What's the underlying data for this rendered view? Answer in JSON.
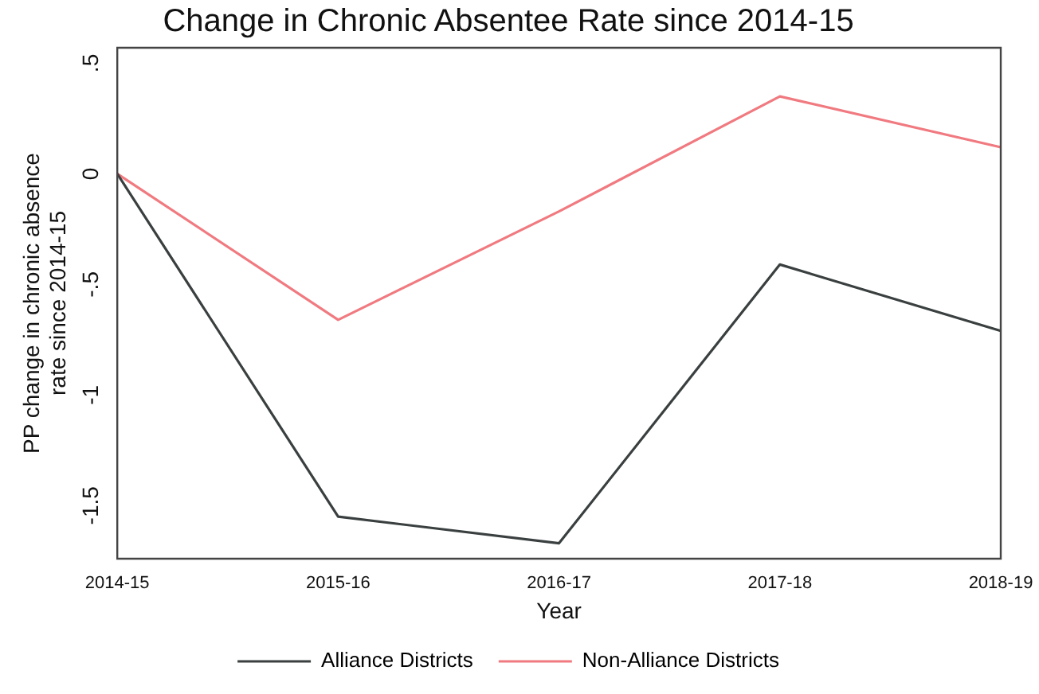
{
  "chart_data": {
    "type": "line",
    "title": "Change in Chronic Absentee Rate since 2014-15",
    "xlabel": "Year",
    "ylabel": "PP change in chronic absence rate since 2014-15",
    "categories": [
      "2014-15",
      "2015-16",
      "2016-17",
      "2017-18",
      "2018-19"
    ],
    "series": [
      {
        "name": "Alliance Districts",
        "color": "#3a3f3f",
        "values": [
          0,
          -1.55,
          -1.67,
          -0.41,
          -0.71
        ]
      },
      {
        "name": "Non-Alliance Districts",
        "color": "#f07a80",
        "values": [
          0,
          -0.66,
          -0.17,
          0.35,
          0.12
        ]
      }
    ],
    "ylim": [
      -1.74,
      0.57
    ],
    "yticks": [
      {
        "value": -1.5,
        "label": "-1.5"
      },
      {
        "value": -1,
        "label": "-1"
      },
      {
        "value": -0.5,
        "label": "-.5"
      },
      {
        "value": 0,
        "label": "0"
      },
      {
        "value": 0.5,
        "label": ".5"
      }
    ],
    "grid": false,
    "legend": "bottom",
    "marker": "none",
    "line_style": "solid"
  }
}
